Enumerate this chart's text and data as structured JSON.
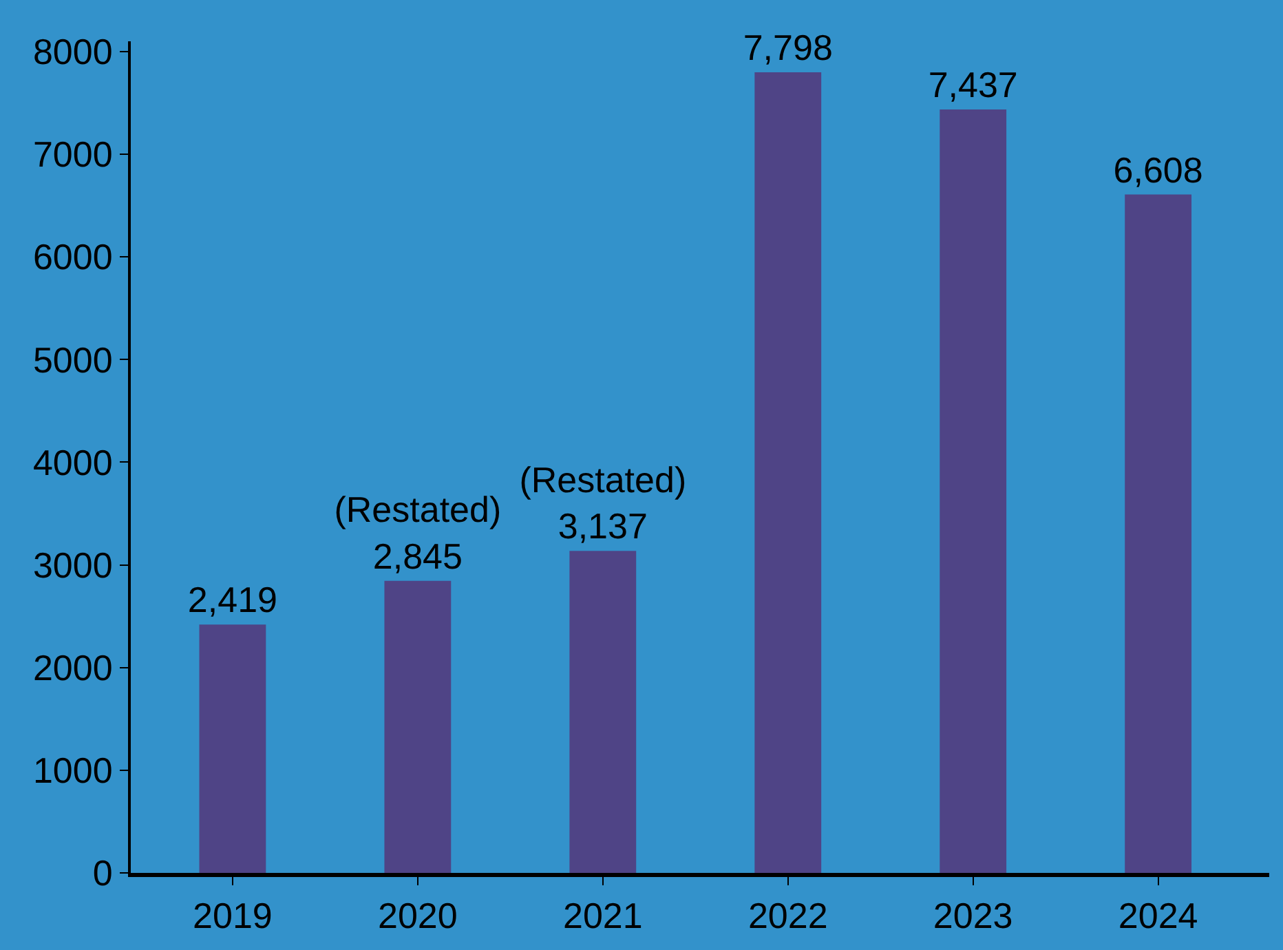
{
  "chart_data": {
    "type": "bar",
    "categories": [
      "2019",
      "2020",
      "2021",
      "2022",
      "2023",
      "2024"
    ],
    "values": [
      2419,
      2845,
      3137,
      7798,
      7437,
      6608
    ],
    "value_labels": [
      "2,419",
      "(Restated)\n2,845",
      "(Restated)\n3,137",
      "7,798",
      "7,437",
      "6,608"
    ],
    "color": "#4f4486",
    "ylim": [
      0,
      8100
    ],
    "yticks": [
      0,
      1000,
      2000,
      3000,
      4000,
      5000,
      6000,
      7000,
      8000
    ],
    "grid": false
  }
}
